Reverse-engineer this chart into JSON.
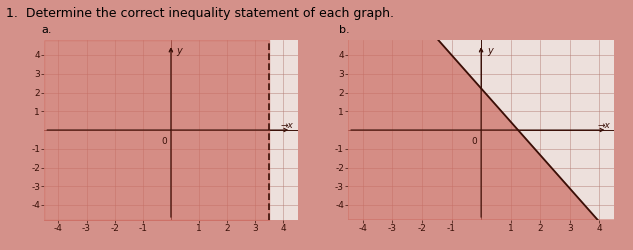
{
  "title": "1.  Determine the correct inequality statement of each graph.",
  "subtitle_a": "a.",
  "subtitle_b": "b.",
  "page_bg": "#d4918a",
  "graph_bg_shaded": "#e8a89e",
  "graph_bg_white": "#f0e8e4",
  "shade_color": "#cc6a60",
  "grid_color": "#b07870",
  "axis_color": "#3a1008",
  "line_color": "#3a1008",
  "white_bg": "#ede0dc",
  "graph_a": {
    "xlim": [
      -4.5,
      4.5
    ],
    "ylim": [
      -4.8,
      4.8
    ],
    "xticks": [
      -4,
      -3,
      -2,
      -1,
      1,
      2,
      3,
      4
    ],
    "yticks": [
      -4,
      -3,
      -2,
      -1,
      1,
      2,
      3,
      4
    ],
    "vertical_line_x": 3.5,
    "shade_alpha": 0.7
  },
  "graph_b": {
    "xlim": [
      -4.5,
      4.5
    ],
    "ylim": [
      -4.8,
      4.8
    ],
    "xticks": [
      -4,
      -3,
      -2,
      -1,
      1,
      2,
      3,
      4
    ],
    "yticks": [
      -4,
      -3,
      -2,
      -1,
      1,
      2,
      3,
      4
    ],
    "line_x1": -1.0,
    "line_y1": 4.0,
    "line_x2": 3.5,
    "line_y2": -4.0,
    "shade_alpha": 0.7
  },
  "font_size_title": 9,
  "font_size_label": 7,
  "font_size_tick": 6.5
}
